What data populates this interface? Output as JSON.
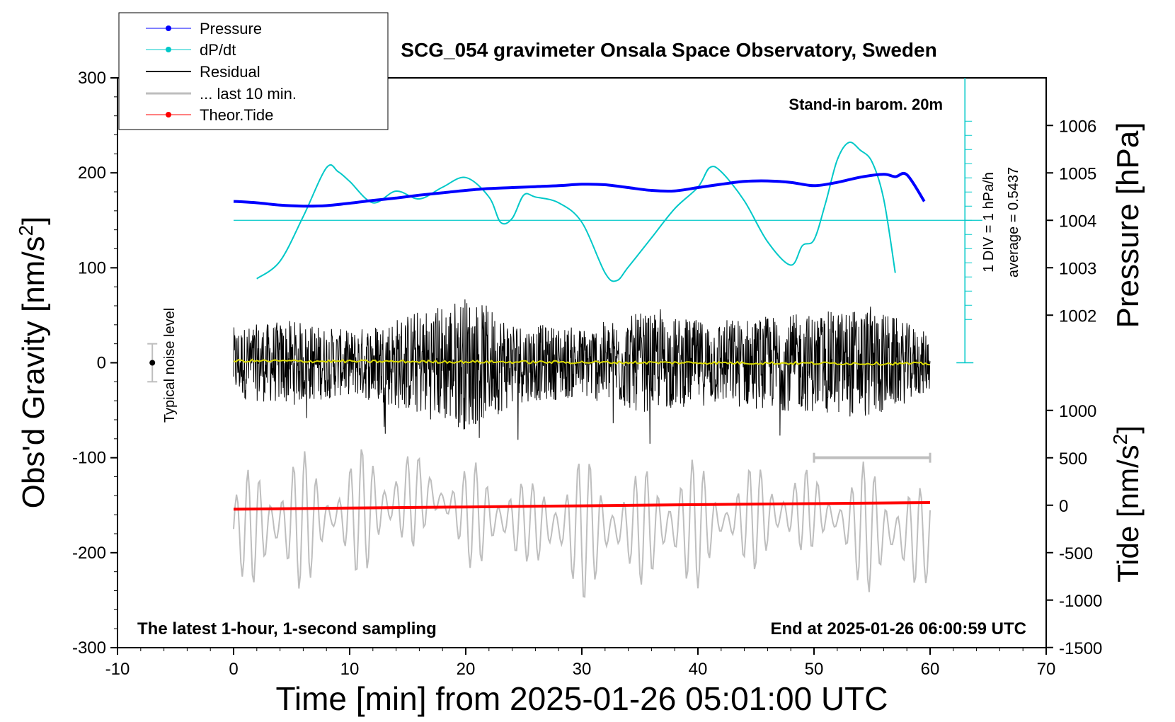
{
  "chart_data": {
    "type": "line",
    "title": "SCG_054 gravimeter Onsala Space Observatory, Sweden",
    "xlabel": "Time [min] from 2025-01-26 05:01:00 UTC",
    "ylabel_left_main": "Obs'd Gravity [nm/s",
    "ylabel_left_sup": "2",
    "ylabel_left_tail": "]",
    "ylabel_right_top": "Pressure [hPa]",
    "ylabel_right_bottom_main": "Tide [nm/s",
    "ylabel_right_bottom_sup": "2",
    "ylabel_right_bottom_tail": "]",
    "xlim": [
      -10,
      70
    ],
    "ylim_left": [
      -300,
      300
    ],
    "x_ticks": [
      "-10",
      "0",
      "10",
      "20",
      "30",
      "40",
      "50",
      "60",
      "70"
    ],
    "y_ticks_left": [
      "300",
      "200",
      "100",
      "0",
      "-100",
      "-200",
      "-300"
    ],
    "y_ticks_pressure": [
      "1006",
      "1005",
      "1004",
      "1003",
      "1002"
    ],
    "y_ticks_tide": [
      "1000",
      "500",
      "0",
      "-500",
      "-1000",
      "-1500"
    ],
    "annotations": {
      "barometer": "Stand-in barom. 20m",
      "latest": "The latest 1-hour, 1-second sampling",
      "end": "End at 2025-01-26 06:00:59 UTC",
      "noise": "Typical noise level",
      "div": "1 DIV = 1 hPa/h",
      "average": "average = 0.5437"
    },
    "legend": {
      "position": "top-left",
      "entries": [
        {
          "label": "Pressure",
          "color": "#0000ff"
        },
        {
          "label": "dP/dt",
          "color": "#00c8c8"
        },
        {
          "label": "Residual",
          "color": "#000000"
        },
        {
          "label": "... last 10 min.",
          "color": "#bebebe"
        },
        {
          "label": "Theor.Tide",
          "color": "#ff0000"
        }
      ]
    },
    "series": [
      {
        "name": "Pressure",
        "axis": "pressure_hPa",
        "color": "#0000ff",
        "x": [
          0,
          2,
          4,
          6,
          8,
          10,
          12,
          14,
          16,
          18,
          20,
          22,
          24,
          26,
          28,
          30,
          32,
          34,
          36,
          38,
          40,
          42,
          44,
          46,
          48,
          50,
          52,
          54,
          56,
          57,
          58,
          59.5
        ],
        "values": [
          1004.4,
          1004.37,
          1004.32,
          1004.3,
          1004.31,
          1004.36,
          1004.42,
          1004.47,
          1004.53,
          1004.58,
          1004.63,
          1004.67,
          1004.69,
          1004.71,
          1004.73,
          1004.76,
          1004.75,
          1004.69,
          1004.63,
          1004.62,
          1004.69,
          1004.76,
          1004.82,
          1004.83,
          1004.8,
          1004.73,
          1004.8,
          1004.91,
          1004.97,
          1004.92,
          1004.96,
          1004.4
        ]
      },
      {
        "name": "dP/dt",
        "axis": "dPdt_div",
        "color": "#00c8c8",
        "x": [
          2,
          4,
          6,
          8,
          9,
          10,
          12,
          14,
          16,
          18,
          20,
          22,
          23,
          24,
          25,
          26,
          28,
          30,
          32,
          33,
          34,
          36,
          38,
          40,
          41,
          42,
          44,
          46,
          48,
          49,
          50,
          51,
          52,
          53,
          54,
          55,
          56,
          57
        ],
        "values": [
          -1.5,
          -1.05,
          0.1,
          1.35,
          1.25,
          1.0,
          0.45,
          0.75,
          0.55,
          0.85,
          1.1,
          0.6,
          -0.05,
          0.05,
          0.65,
          0.6,
          0.45,
          -0.05,
          -1.35,
          -1.55,
          -1.2,
          -0.45,
          0.3,
          0.85,
          1.35,
          1.25,
          0.5,
          -0.55,
          -1.15,
          -0.65,
          -0.5,
          0.45,
          1.55,
          2.0,
          1.8,
          1.5,
          0.55,
          -1.35
        ]
      },
      {
        "name": "Theor.Tide",
        "axis": "tide_nm_s2",
        "color": "#ff0000",
        "x": [
          0,
          10,
          20,
          30,
          40,
          50,
          60
        ],
        "values": [
          -42,
          -30,
          -18,
          -6,
          6,
          17,
          28
        ]
      },
      {
        "name": "Residual",
        "axis": "gravity_nm_s2",
        "color": "#000000",
        "note": "1-second samples, amplitude envelope per 5-minute block",
        "x": [
          0,
          5,
          10,
          15,
          20,
          25,
          30,
          35,
          40,
          45,
          50,
          55,
          60
        ],
        "values": [
          50,
          60,
          45,
          70,
          95,
          55,
          50,
          70,
          60,
          65,
          70,
          80,
          40
        ]
      },
      {
        "name": "Mean (yellow)",
        "axis": "gravity_nm_s2",
        "color": "#d8d800",
        "x": [
          0,
          60
        ],
        "values": [
          2,
          -1
        ]
      },
      {
        "name": "... last 10 min.",
        "axis": "gravity_nm_s2_offset",
        "color": "#bebebe",
        "note": "zoomed oscillation around -150 nm/s2 level",
        "x": [
          0,
          10,
          17,
          20,
          30,
          40,
          50,
          53,
          60
        ],
        "values": [
          -175,
          -160,
          -140,
          -160,
          -175,
          -170,
          -155,
          -170,
          -185
        ]
      }
    ],
    "error_bars": {
      "noise_level": {
        "x": -7,
        "y": 0,
        "err": 20
      },
      "last10_range": {
        "x0": 50,
        "x1": 60,
        "y": -100
      }
    },
    "reference_line_dPdt_level": 150
  }
}
